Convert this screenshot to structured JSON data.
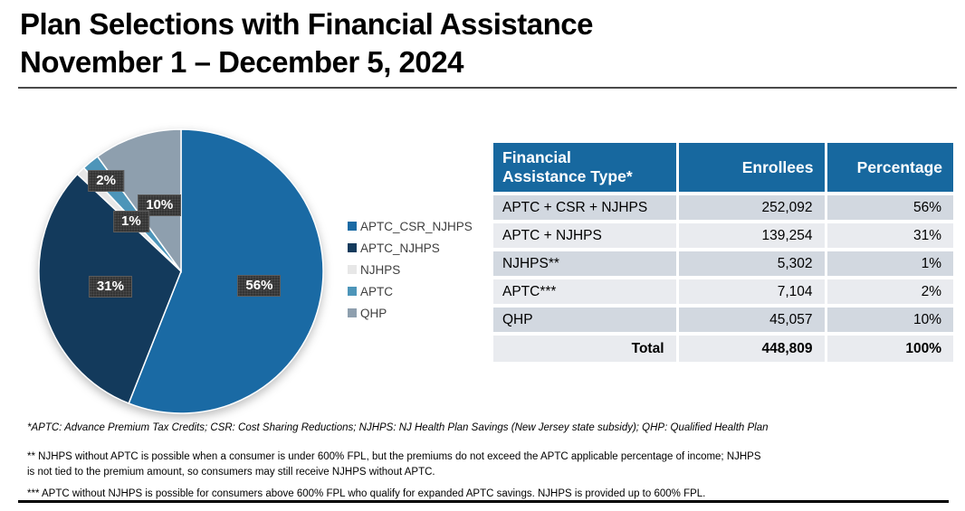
{
  "page": {
    "title_line1": "Plan Selections with Financial Assistance",
    "title_line2": "November 1 – December 5, 2024"
  },
  "chart_data": {
    "type": "pie",
    "categories": [
      "APTC_CSR_NJHPS",
      "APTC_NJHPS",
      "NJHPS",
      "APTC",
      "QHP"
    ],
    "values": [
      56,
      31,
      1,
      2,
      10
    ],
    "data_labels": [
      "56%",
      "31%",
      "1%",
      "2%",
      "10%"
    ],
    "colors": [
      "#1a6aa4",
      "#133a5c",
      "#e7e7e7",
      "#4d95b9",
      "#8e9fae"
    ],
    "legend_position": "right",
    "start_angle_deg": 0,
    "direction": "clockwise"
  },
  "table": {
    "header_bg": "#17689f",
    "headers": [
      "Financial Assistance Type*",
      "Enrollees",
      "Percentage"
    ],
    "rows": [
      [
        "APTC + CSR + NJHPS",
        "252,092",
        "56%"
      ],
      [
        "APTC + NJHPS",
        "139,254",
        "31%"
      ],
      [
        "NJHPS**",
        "5,302",
        "1%"
      ],
      [
        "APTC***",
        "7,104",
        "2%"
      ],
      [
        "QHP",
        "45,057",
        "10%"
      ]
    ],
    "total_row": [
      "Total",
      "448,809",
      "100%"
    ]
  },
  "footnotes": {
    "f1": "*APTC: Advance Premium Tax Credits; CSR: Cost Sharing Reductions; NJHPS: NJ Health Plan Savings (New Jersey state subsidy); QHP: Qualified Health Plan",
    "f2_line1": "** NJHPS without APTC is possible when a consumer is under 600% FPL, but the premiums do not exceed the APTC applicable percentage of income; NJHPS",
    "f2_line2": "is not tied to the premium amount, so consumers may still receive NJHPS without APTC.",
    "f3": "*** APTC without NJHPS is possible for consumers above 600% FPL who qualify for expanded APTC savings. NJHPS is provided up to 600% FPL."
  }
}
